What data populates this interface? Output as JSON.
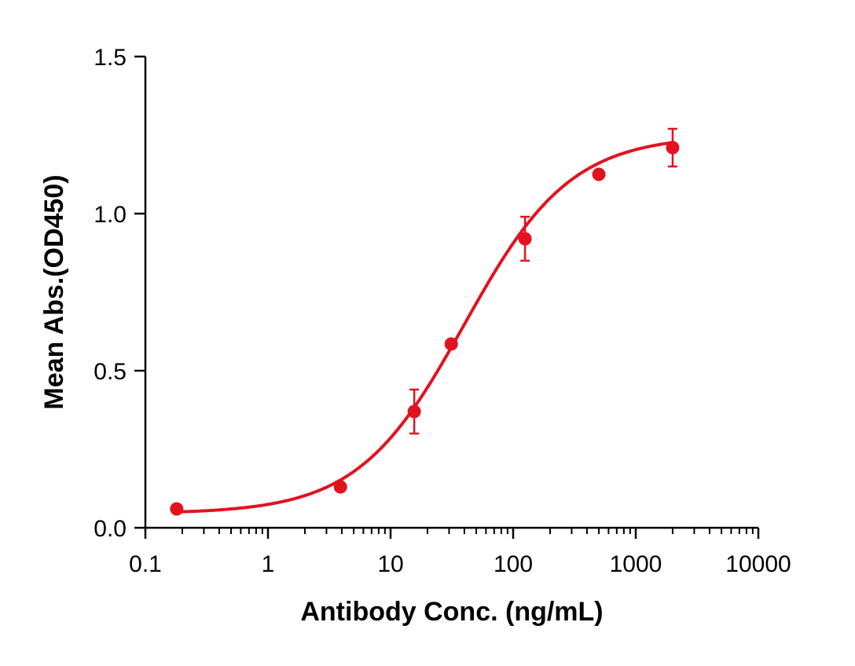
{
  "chart_data": {
    "type": "scatter",
    "title": "",
    "xlabel": "Antibody Conc. (ng/mL)",
    "ylabel": "Mean Abs.(OD450)",
    "x_scale": "log",
    "xlim": [
      0.1,
      10000
    ],
    "ylim": [
      0,
      1.5
    ],
    "x_ticks": [
      "0.1",
      "1",
      "10",
      "100",
      "1000",
      "10000"
    ],
    "x_tick_values": [
      0.1,
      1,
      10,
      100,
      1000,
      10000
    ],
    "y_ticks": [
      "0.0",
      "0.5",
      "1.0",
      "1.5"
    ],
    "y_tick_values": [
      0,
      0.5,
      1.0,
      1.5
    ],
    "grid": false,
    "legend": "none",
    "color": "#e3121f",
    "series": [
      {
        "x": [
          0.18,
          3.9,
          15.6,
          31.25,
          125,
          500,
          2000
        ],
        "y": [
          0.06,
          0.13,
          0.37,
          0.585,
          0.92,
          1.125,
          1.21
        ],
        "error": [
          0,
          0,
          0.07,
          0,
          0.07,
          0,
          0.06
        ]
      }
    ],
    "fit_curve": {
      "model": "4PL",
      "bottom": 0.045,
      "top": 1.25,
      "ec50": 40,
      "hill": 1.0
    }
  }
}
